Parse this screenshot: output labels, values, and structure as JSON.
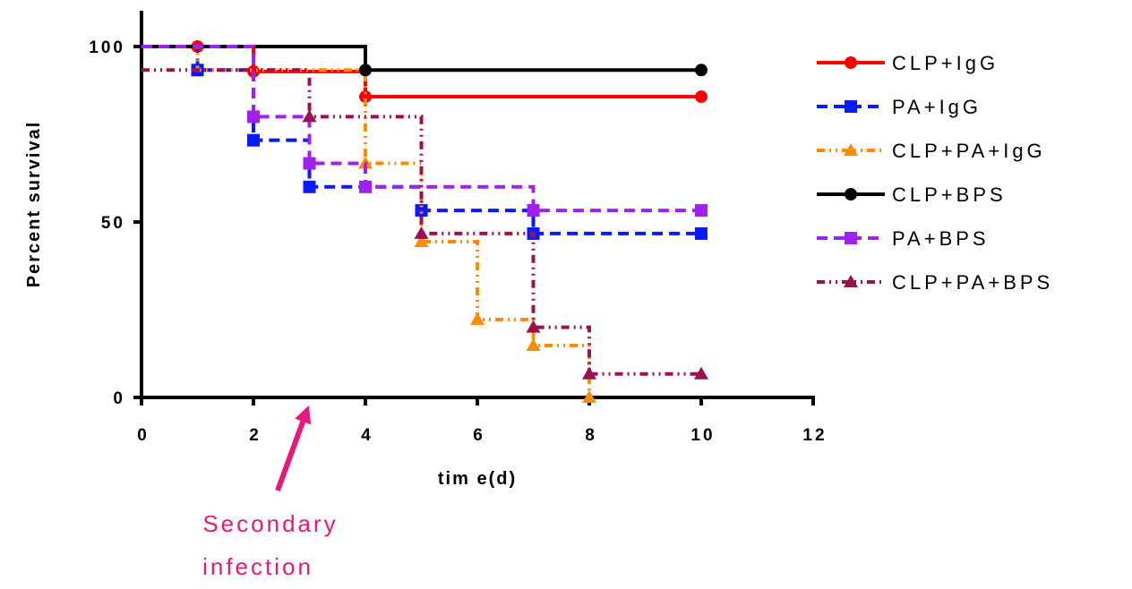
{
  "chart_data": {
    "type": "line",
    "xlabel": "tim e(d)",
    "ylabel": "Percent survival",
    "xlim": [
      0,
      12
    ],
    "ylim": [
      0,
      100
    ],
    "x_ticks": [
      "0",
      "2",
      "4",
      "6",
      "8",
      "10",
      "12"
    ],
    "y_ticks": [
      "0",
      "50",
      "100"
    ],
    "grid": false,
    "legend_position": "right",
    "series": [
      {
        "name": "CLP+IgG",
        "color": "#ff0000",
        "marker": "circle",
        "dash": "solid",
        "step_x": [
          0,
          2,
          4,
          10
        ],
        "step_y": [
          100,
          92.9,
          85.7,
          85.7
        ],
        "marker_x": [
          1,
          2,
          4,
          10
        ],
        "marker_y": [
          100,
          92.9,
          85.7,
          85.7
        ]
      },
      {
        "name": "PA+IgG",
        "color": "#0a1aff",
        "marker": "square",
        "dash": "dash",
        "step_x": [
          0,
          1,
          2,
          3,
          5,
          7,
          10
        ],
        "step_y": [
          100,
          93.3,
          73.3,
          60,
          53.3,
          46.7,
          46.7
        ],
        "marker_x": [
          1,
          2,
          3,
          5,
          7,
          10
        ],
        "marker_y": [
          93.3,
          73.3,
          60,
          53.3,
          46.7,
          46.7
        ]
      },
      {
        "name": "CLP+PA+IgG",
        "color": "#ff8c00",
        "marker": "triangle",
        "dash": "dashdot",
        "step_x": [
          0,
          1,
          4,
          5,
          6,
          7,
          8
        ],
        "step_y": [
          100,
          93.3,
          66.7,
          44.4,
          22.2,
          14.8,
          0
        ],
        "marker_x": [
          4,
          5,
          6,
          7,
          8
        ],
        "marker_y": [
          66.7,
          44.4,
          22.2,
          14.8,
          0
        ]
      },
      {
        "name": "CLP+BPS",
        "color": "#000000",
        "marker": "circle",
        "dash": "solid",
        "step_x": [
          0,
          4,
          10
        ],
        "step_y": [
          100,
          93.3,
          93.3
        ],
        "marker_x": [
          4,
          10
        ],
        "marker_y": [
          93.3,
          93.3
        ]
      },
      {
        "name": "PA+BPS",
        "color": "#a020f0",
        "marker": "square",
        "dash": "dash",
        "step_x": [
          0,
          2,
          3,
          4,
          7,
          10
        ],
        "step_y": [
          100,
          80,
          66.7,
          60,
          53.3,
          53.3
        ],
        "marker_x": [
          2,
          3,
          4,
          7,
          10
        ],
        "marker_y": [
          80,
          66.7,
          60,
          53.3,
          53.3
        ]
      },
      {
        "name": "CLP+PA+BPS",
        "color": "#99124f",
        "marker": "triangle",
        "dash": "dashdot",
        "step_x": [
          0,
          3,
          5,
          7,
          8,
          10
        ],
        "step_y": [
          93.3,
          80,
          46.7,
          20,
          6.7,
          6.7
        ],
        "marker_x": [
          3,
          5,
          7,
          8,
          10
        ],
        "marker_y": [
          80,
          46.7,
          20,
          6.7,
          6.7
        ]
      }
    ],
    "annotation": {
      "lines": [
        "Secondary",
        "infection"
      ],
      "arrow_at_x": 3,
      "color": "#e8187a"
    }
  }
}
